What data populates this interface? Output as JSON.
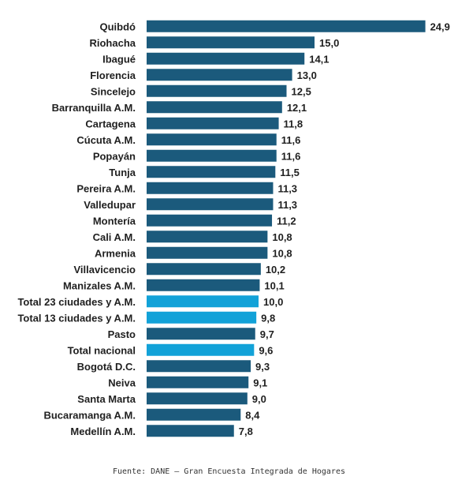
{
  "chart_data": {
    "type": "bar",
    "orientation": "horizontal",
    "categories": [
      "Quibdó",
      "Riohacha",
      "Ibagué",
      "Florencia",
      "Sincelejo",
      "Barranquilla A.M.",
      "Cartagena",
      "Cúcuta A.M.",
      "Popayán",
      "Tunja",
      "Pereira A.M.",
      "Valledupar",
      "Montería",
      "Cali A.M.",
      "Armenia",
      "Villavicencio",
      "Manizales A.M.",
      "Total 23 ciudades y A.M.",
      "Total 13 ciudades y A.M.",
      "Pasto",
      "Total nacional",
      "Bogotá D.C.",
      "Neiva",
      "Santa Marta",
      "Bucaramanga A.M.",
      "Medellín A.M."
    ],
    "values": [
      24.9,
      15.0,
      14.1,
      13.0,
      12.5,
      12.1,
      11.8,
      11.6,
      11.6,
      11.5,
      11.3,
      11.3,
      11.2,
      10.8,
      10.8,
      10.2,
      10.1,
      10.0,
      9.8,
      9.7,
      9.6,
      9.3,
      9.1,
      9.0,
      8.4,
      7.8
    ],
    "value_labels": [
      "24,9",
      "15,0",
      "14,1",
      "13,0",
      "12,5",
      "12,1",
      "11,8",
      "11,6",
      "11,6",
      "11,5",
      "11,3",
      "11,3",
      "11,2",
      "10,8",
      "10,8",
      "10,2",
      "10,1",
      "10,0",
      "9,8",
      "9,7",
      "9,6",
      "9,3",
      "9,1",
      "9,0",
      "8,4",
      "7,8"
    ],
    "highlighted": [
      "Total 23 ciudades y A.M.",
      "Total 13 ciudades y A.M.",
      "Total nacional"
    ],
    "colors": {
      "default": "#1b5a7c",
      "highlight": "#12a2d8"
    },
    "xlim": [
      0,
      25
    ],
    "grid": false,
    "legend": "none",
    "title": "",
    "xlabel": "",
    "ylabel": ""
  },
  "source": "Fuente: DANE – Gran Encuesta Integrada de Hogares"
}
